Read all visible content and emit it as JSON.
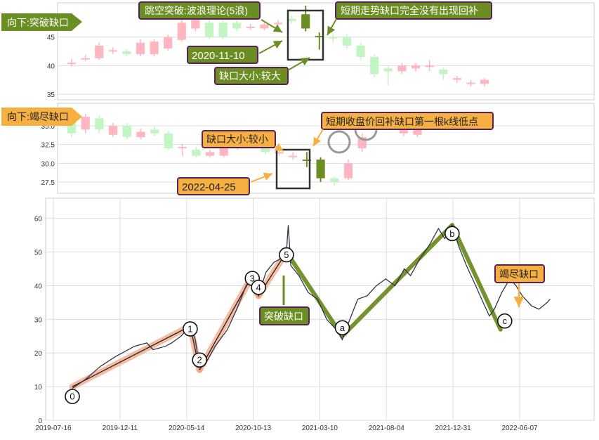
{
  "colors": {
    "up_fill": "#ffb6c1",
    "down_fill": "#c1f5c1",
    "highlight": "#6b8e23",
    "label_orange": "#f5b041",
    "label_green": "#6b8e23",
    "label_border": "#5b1f5b",
    "price_line": "#2f3547",
    "wave_impulse": "#f4a582",
    "wave_correct": "#6b8e23",
    "grid": "#dcdcdc"
  },
  "panel1": {
    "tag": "向下:突破缺口",
    "annotations": {
      "gap_theory": "跳空突破:波浪理论(5浪)",
      "fill_note": "短期走势缺口完全没有出现回补",
      "date": "2020-11-10",
      "size": "缺口大小:较大"
    }
  },
  "panel2": {
    "tag": "向下:竭尽缺口",
    "annotations": {
      "fill_note": "短期收盘价回补缺口第一根k线低点",
      "size": "缺口大小:较小",
      "date": "2022-04-25"
    }
  },
  "panel3": {
    "annotations": {
      "breakaway": "突破缺口",
      "exhaustion": "竭尽缺口"
    }
  },
  "chart_data": [
    {
      "type": "candlestick",
      "yticks": [
        35,
        40,
        45
      ],
      "ylim": [
        34,
        51
      ],
      "candles": [
        {
          "o": 40.5,
          "c": 40.5,
          "h": 41.2,
          "l": 39.8
        },
        {
          "o": 41.3,
          "c": 41.3,
          "h": 41.9,
          "l": 40.8
        },
        {
          "o": 41.3,
          "c": 43.5,
          "h": 44.0,
          "l": 41.0
        },
        {
          "o": 42.5,
          "c": 42.7,
          "h": 43.2,
          "l": 42.0
        },
        {
          "o": 42.5,
          "c": 42.0,
          "h": 42.9,
          "l": 41.6
        },
        {
          "o": 42.0,
          "c": 44.0,
          "h": 44.6,
          "l": 41.6
        },
        {
          "o": 42.0,
          "c": 44.2,
          "h": 44.6,
          "l": 41.6
        },
        {
          "o": 43.0,
          "c": 45.0,
          "h": 45.4,
          "l": 42.6
        },
        {
          "o": 44.5,
          "c": 47.5,
          "h": 48.2,
          "l": 44.2
        },
        {
          "o": 46.5,
          "c": 48.0,
          "h": 48.6,
          "l": 46.0
        },
        {
          "o": 47.5,
          "c": 45.0,
          "h": 48.0,
          "l": 44.6
        },
        {
          "o": 47.5,
          "c": 45.0,
          "h": 48.0,
          "l": 44.6
        },
        {
          "o": 47.5,
          "c": 46.5,
          "h": 48.0,
          "l": 46.0
        },
        {
          "o": 46.8,
          "c": 46.8,
          "h": 47.3,
          "l": 46.3
        },
        {
          "o": 46.5,
          "c": 47.2,
          "h": 47.8,
          "l": 46.2
        },
        {
          "o": 47.5,
          "c": 47.5,
          "h": 48.0,
          "l": 47.0
        },
        {
          "o": 48.2,
          "c": 47.8,
          "h": 48.8,
          "l": 47.3
        },
        {
          "o": 49.0,
          "c": 46.5,
          "h": 50.5,
          "l": 46.0
        },
        {
          "o": 45.2,
          "c": 45.2,
          "h": 45.8,
          "l": 42.8
        },
        {
          "o": 45.0,
          "c": 44.8,
          "h": 45.5,
          "l": 44.0
        },
        {
          "o": 45.0,
          "c": 43.5,
          "h": 45.5,
          "l": 43.0
        },
        {
          "o": 43.5,
          "c": 41.5,
          "h": 44.0,
          "l": 41.0
        },
        {
          "o": 41.5,
          "c": 38.5,
          "h": 42.0,
          "l": 38.0
        },
        {
          "o": 39.5,
          "c": 39.0,
          "h": 40.0,
          "l": 36.5
        },
        {
          "o": 39.0,
          "c": 40.0,
          "h": 40.5,
          "l": 38.5
        },
        {
          "o": 39.5,
          "c": 40.0,
          "h": 40.5,
          "l": 39.0
        },
        {
          "o": 40.0,
          "c": 40.0,
          "h": 41.0,
          "l": 39.0
        },
        {
          "o": 39.3,
          "c": 38.5,
          "h": 39.6,
          "l": 37.5
        },
        {
          "o": 37.5,
          "c": 37.8,
          "h": 38.2,
          "l": 37.0
        },
        {
          "o": 37.0,
          "c": 37.0,
          "h": 37.5,
          "l": 36.3
        },
        {
          "o": 36.8,
          "c": 37.5,
          "h": 37.8,
          "l": 36.3
        }
      ],
      "highlight_index": [
        17,
        18
      ]
    },
    {
      "type": "candlestick",
      "yticks": [
        27.5,
        30.0,
        32.5,
        35.0
      ],
      "ylim": [
        26,
        38
      ],
      "candles": [
        {
          "o": 35.5,
          "c": 34.0,
          "h": 36.0,
          "l": 33.5
        },
        {
          "o": 34.5,
          "c": 36.2,
          "h": 36.6,
          "l": 34.0
        },
        {
          "o": 36.0,
          "c": 34.5,
          "h": 36.4,
          "l": 34.0
        },
        {
          "o": 33.8,
          "c": 35.0,
          "h": 35.4,
          "l": 33.5
        },
        {
          "o": 35.0,
          "c": 33.5,
          "h": 35.4,
          "l": 33.2
        },
        {
          "o": 33.5,
          "c": 34.2,
          "h": 34.6,
          "l": 33.2
        },
        {
          "o": 34.5,
          "c": 34.0,
          "h": 34.9,
          "l": 33.6
        },
        {
          "o": 34.0,
          "c": 32.0,
          "h": 34.4,
          "l": 31.8
        },
        {
          "o": 32.2,
          "c": 32.2,
          "h": 32.6,
          "l": 31.0
        },
        {
          "o": 31.8,
          "c": 31.0,
          "h": 32.2,
          "l": 30.8
        },
        {
          "o": 31.0,
          "c": 31.5,
          "h": 31.8,
          "l": 30.8
        },
        {
          "o": 31.0,
          "c": 32.0,
          "h": 32.3,
          "l": 30.8
        },
        {
          "o": 32.0,
          "c": 32.8,
          "h": 33.2,
          "l": 31.8
        },
        {
          "o": 32.5,
          "c": 33.0,
          "h": 33.4,
          "l": 32.2
        },
        {
          "o": 33.0,
          "c": 31.5,
          "h": 33.3,
          "l": 31.2
        },
        {
          "o": 31.5,
          "c": 31.5,
          "h": 32.0,
          "l": 31.0
        },
        {
          "o": 31.0,
          "c": 31.0,
          "h": 31.5,
          "l": 30.5
        },
        {
          "o": 30.5,
          "c": 30.5,
          "h": 31.5,
          "l": 29.5
        },
        {
          "o": 30.5,
          "c": 28.0,
          "h": 30.8,
          "l": 27.5
        },
        {
          "o": 28.0,
          "c": 27.5,
          "h": 28.2,
          "l": 27.0
        },
        {
          "o": 28.0,
          "c": 30.0,
          "h": 30.5,
          "l": 27.8
        },
        {
          "o": 32.0,
          "c": 33.5,
          "h": 34.0,
          "l": 31.5
        },
        {
          "o": 34.5,
          "c": 35.0,
          "h": 35.5,
          "l": 34.0
        },
        {
          "o": 35.0,
          "c": 35.0,
          "h": 35.5,
          "l": 34.5
        },
        {
          "o": 34.0,
          "c": 34.5,
          "h": 35.0,
          "l": 33.6
        },
        {
          "o": 33.8,
          "c": 35.0,
          "h": 35.4,
          "l": 33.5
        },
        {
          "o": 35.0,
          "c": 36.0,
          "h": 36.5,
          "l": 34.8
        }
      ],
      "highlight_index": [
        17,
        18
      ]
    },
    {
      "type": "line",
      "xtick_labels": [
        "2019-07-16",
        "2019-12-11",
        "2020-05-14",
        "2020-10-13",
        "2021-03-10",
        "2021-08-04",
        "2021-12-31",
        "2022-06-07"
      ],
      "yticks": [
        0,
        10,
        20,
        30,
        40,
        50,
        60
      ],
      "ylim": [
        0,
        66
      ],
      "xlim": [
        0,
        800
      ],
      "price": [
        [
          0,
          9.5
        ],
        [
          20,
          12
        ],
        [
          45,
          16
        ],
        [
          70,
          19
        ],
        [
          100,
          22
        ],
        [
          120,
          23
        ],
        [
          130,
          21
        ],
        [
          150,
          22
        ],
        [
          160,
          23
        ],
        [
          175,
          25
        ],
        [
          185,
          27
        ],
        [
          190,
          28
        ],
        [
          198,
          24
        ],
        [
          205,
          16
        ],
        [
          215,
          17
        ],
        [
          230,
          22
        ],
        [
          250,
          27
        ],
        [
          265,
          33
        ],
        [
          280,
          40
        ],
        [
          290,
          43
        ],
        [
          300,
          37
        ],
        [
          312,
          44
        ],
        [
          325,
          47
        ],
        [
          336,
          48
        ],
        [
          345,
          50
        ],
        [
          348,
          58
        ],
        [
          352,
          46
        ],
        [
          365,
          43
        ],
        [
          380,
          38
        ],
        [
          395,
          36
        ],
        [
          410,
          30
        ],
        [
          425,
          27
        ],
        [
          435,
          24
        ],
        [
          445,
          29
        ],
        [
          460,
          36
        ],
        [
          475,
          37
        ],
        [
          490,
          40
        ],
        [
          505,
          42
        ],
        [
          520,
          40
        ],
        [
          535,
          45
        ],
        [
          545,
          43
        ],
        [
          560,
          48
        ],
        [
          575,
          52
        ],
        [
          590,
          57
        ],
        [
          600,
          54
        ],
        [
          612,
          58
        ],
        [
          622,
          52
        ],
        [
          635,
          46
        ],
        [
          650,
          40
        ],
        [
          662,
          35
        ],
        [
          672,
          31
        ],
        [
          680,
          33
        ],
        [
          692,
          38
        ],
        [
          705,
          42
        ],
        [
          715,
          40
        ],
        [
          725,
          37
        ],
        [
          740,
          34
        ],
        [
          752,
          33
        ],
        [
          765,
          35
        ],
        [
          770,
          36
        ]
      ],
      "waves": [
        {
          "label": "0",
          "x": 0,
          "y": 10
        },
        {
          "label": "1",
          "x": 190,
          "y": 28
        },
        {
          "label": "2",
          "x": 205,
          "y": 15
        },
        {
          "label": "3",
          "x": 290,
          "y": 43
        },
        {
          "label": "4",
          "x": 300,
          "y": 37
        },
        {
          "label": "5",
          "x": 345,
          "y": 50
        },
        {
          "label": "a",
          "x": 435,
          "y": 25
        },
        {
          "label": "b",
          "x": 612,
          "y": 58
        },
        {
          "label": "c",
          "x": 690,
          "y": 27
        }
      ]
    }
  ]
}
